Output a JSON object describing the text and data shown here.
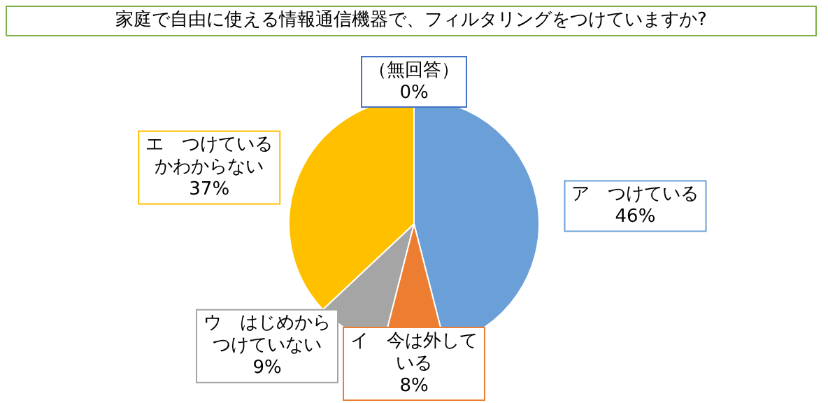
{
  "chart_data": {
    "type": "pie",
    "title": "家庭で自由に使える情報通信機器で、フィルタリングをつけていますか?",
    "categories": [
      "ア　つけている",
      "イ　今は外している",
      "ウ　はじめからつけていない",
      "エ　つけているかわからない",
      "（無回答）"
    ],
    "values": [
      46,
      8,
      9,
      37,
      0
    ],
    "colors": [
      "#6a9fd8",
      "#ed7d31",
      "#a5a5a5",
      "#ffc000",
      "#4472c4"
    ],
    "value_labels": [
      "46%",
      "8%",
      "9%",
      "37%",
      "0%"
    ],
    "legend": false
  }
}
